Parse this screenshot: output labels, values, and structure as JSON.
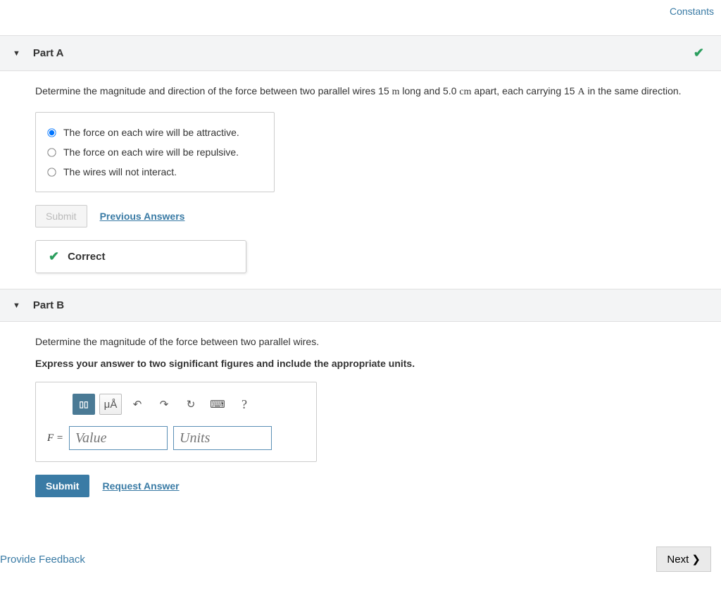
{
  "topLinks": {
    "constants": "Constants"
  },
  "partA": {
    "title": "Part A",
    "completed": true,
    "question": {
      "prefix": "Determine the magnitude and direction of the force between two parallel wires 15 ",
      "u1": "m",
      "mid1": " long and 5.0 ",
      "u2": "cm",
      "mid2": "  apart, each carrying 15 ",
      "u3": "A",
      "suffix": " in the same direction."
    },
    "options": [
      {
        "label": "The force on each wire will be attractive.",
        "selected": true
      },
      {
        "label": "The force on each wire will be repulsive.",
        "selected": false
      },
      {
        "label": "The wires will not interact.",
        "selected": false
      }
    ],
    "submitLabel": "Submit",
    "prevAnswers": "Previous Answers",
    "feedback": "Correct"
  },
  "partB": {
    "title": "Part B",
    "question": "Determine the magnitude of the force between two parallel wires.",
    "instruction": "Express your answer to two significant figures and include the appropriate units.",
    "toolbar": {
      "template": "▯▯",
      "units": "μÅ",
      "undo": "↶",
      "redo": "↷",
      "reset": "↻",
      "keyboard": "⌨",
      "help": "?"
    },
    "inputLabel": "F =",
    "valuePlaceholder": "Value",
    "unitsPlaceholder": "Units",
    "submitLabel": "Submit",
    "requestAnswer": "Request Answer"
  },
  "footer": {
    "feedback": "Provide Feedback",
    "next": "Next ❯"
  },
  "colors": {
    "link": "#3a7ba5",
    "correct": "#2b9e5e",
    "buttonPrimary": "#3a7ba5",
    "headerBg": "#f3f4f5"
  }
}
